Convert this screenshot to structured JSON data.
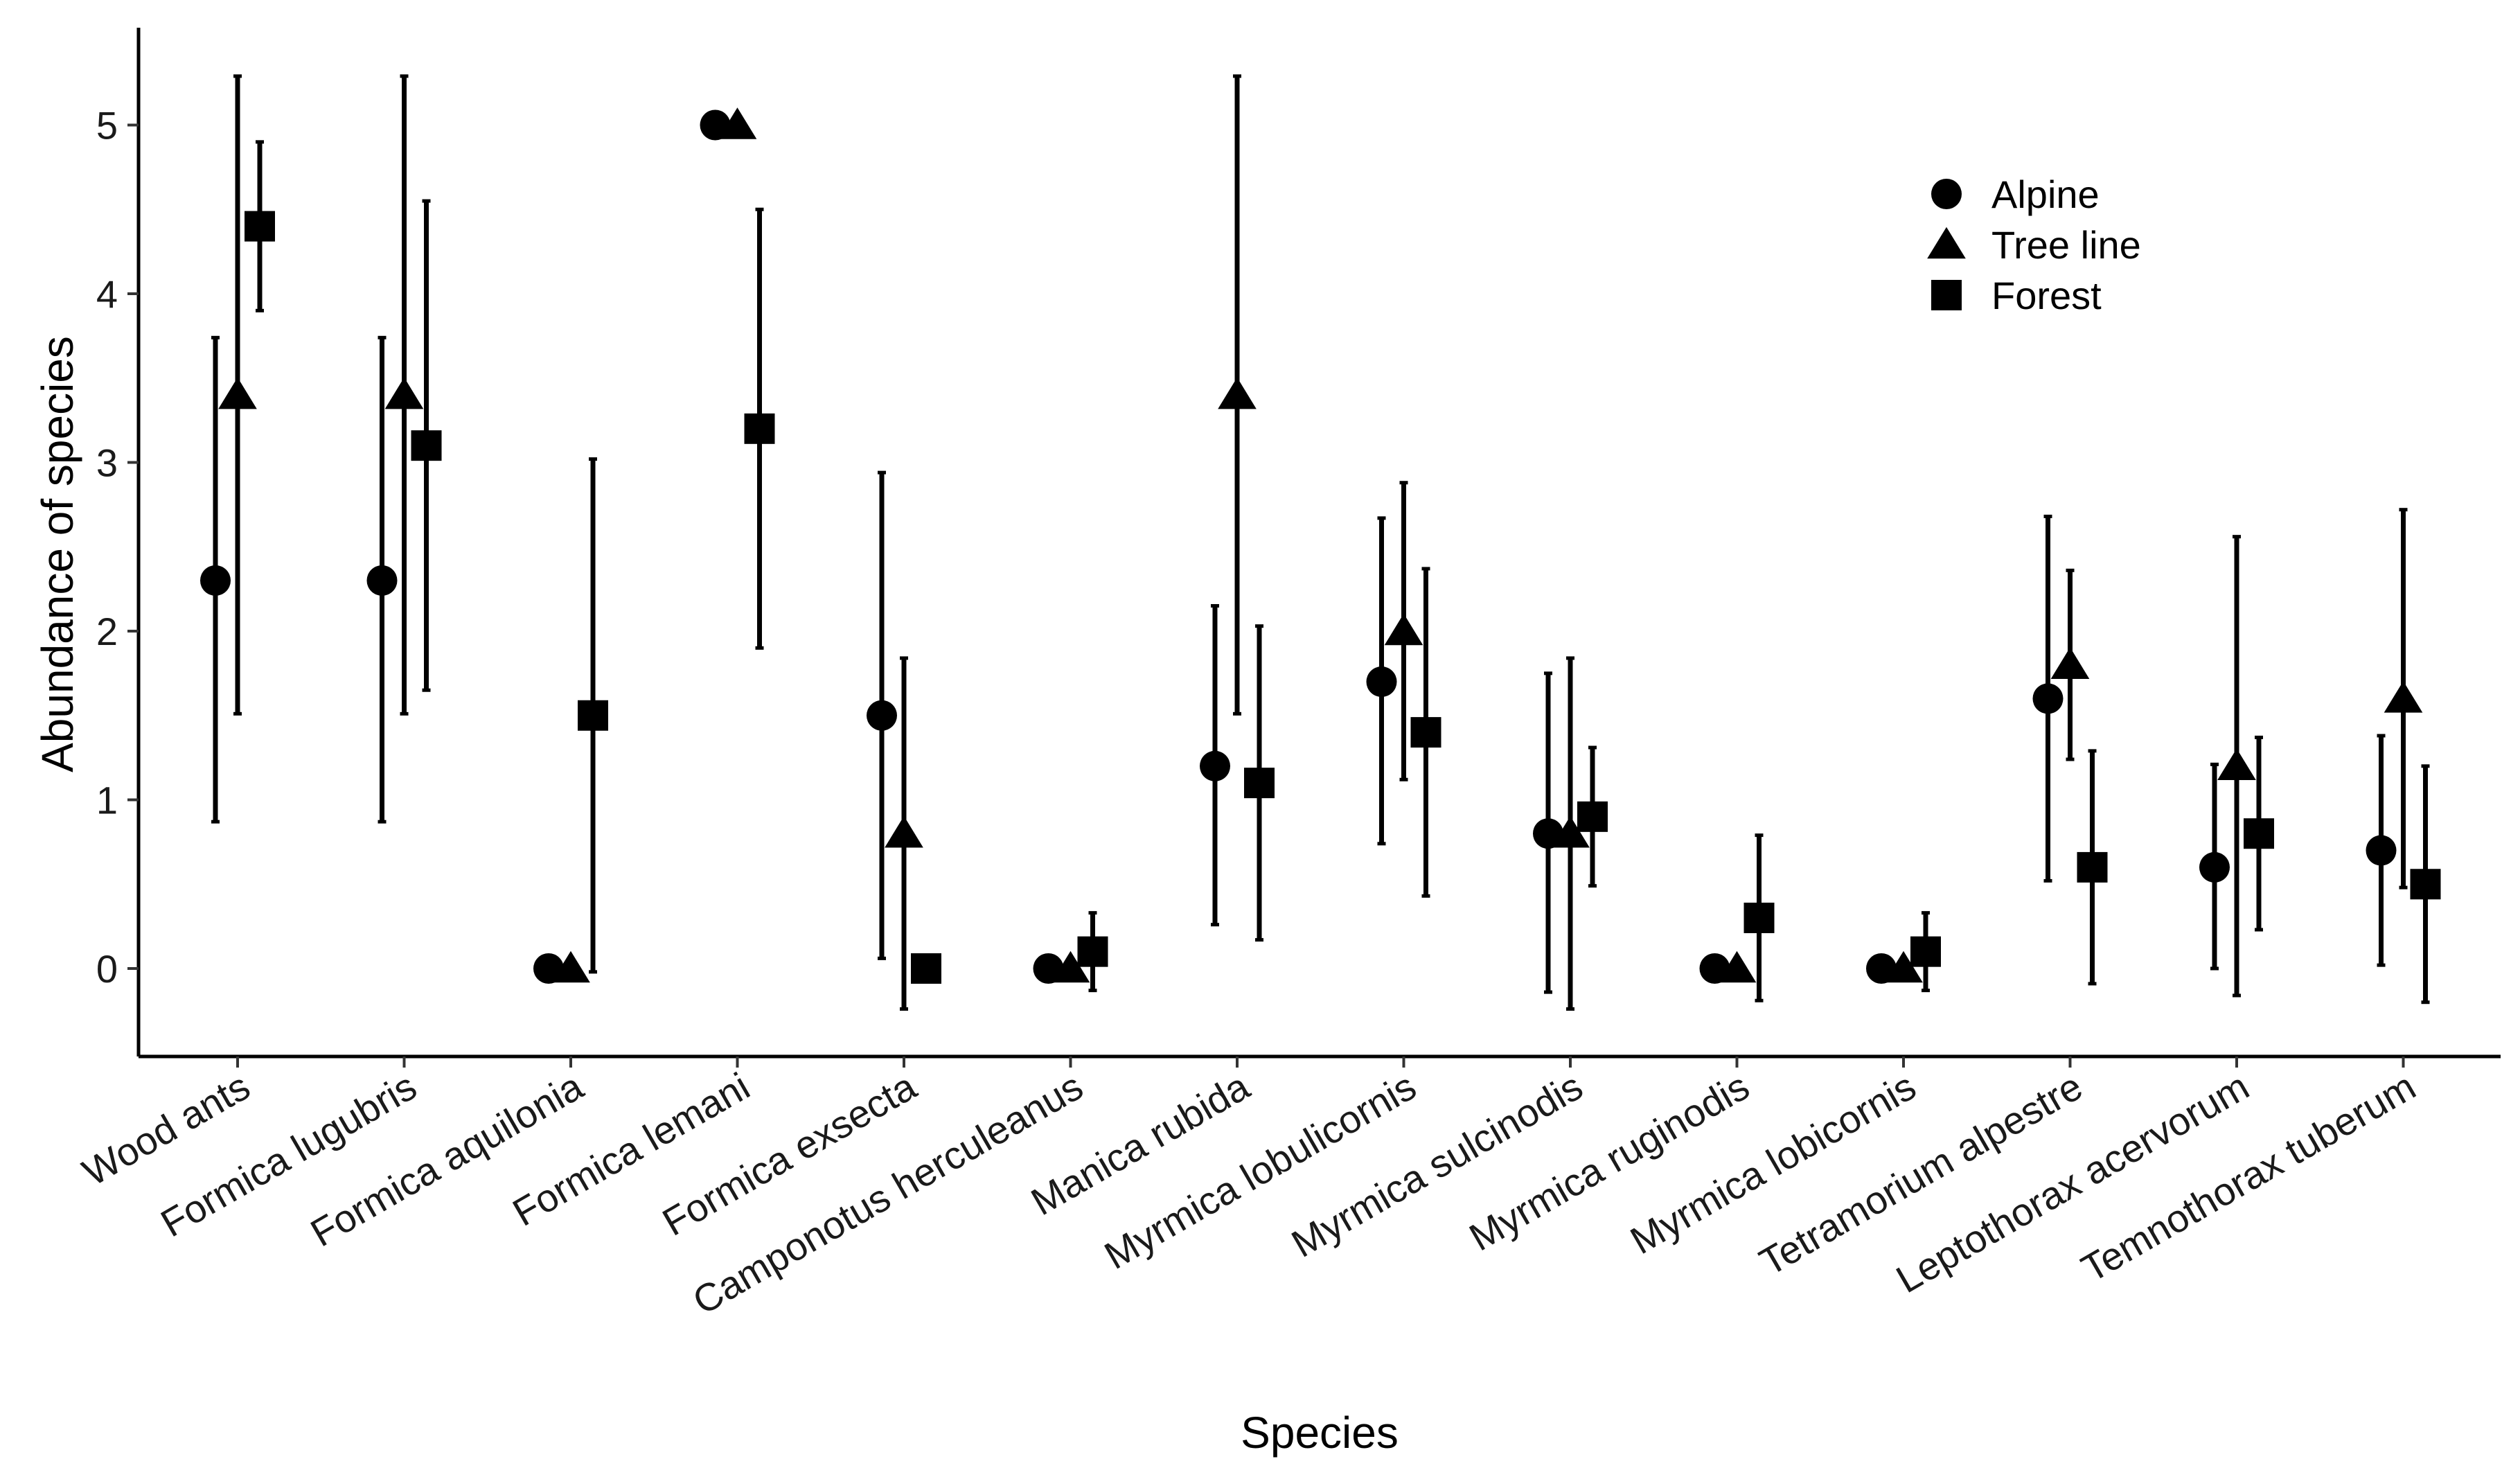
{
  "chart_data": {
    "type": "scatter",
    "title": "",
    "xlabel": "Species",
    "ylabel": "Abundance of species",
    "ylim": [
      -0.5,
      5.5
    ],
    "yticks": [
      0,
      1,
      2,
      3,
      4,
      5
    ],
    "grid": false,
    "legend_position": "top-right",
    "categories": [
      "Wood ants",
      "Formica lugubris",
      "Formica aquilonia",
      "Formica lemani",
      "Formica exsecta",
      "Camponotus herculeanus",
      "Manica rubida",
      "Myrmica lobulicornis",
      "Myrmica sulcinodis",
      "Myrmica ruginodis",
      "Myrmica lobicornis",
      "Tetramorium alpestre",
      "Leptothorax acervorum",
      "Temnothorax tuberum"
    ],
    "series": [
      {
        "name": "Alpine",
        "marker": "circle",
        "values": [
          2.3,
          2.3,
          0,
          5.0,
          1.5,
          0,
          1.2,
          1.7,
          0.8,
          0,
          0,
          1.6,
          0.6,
          0.7
        ],
        "lower": [
          0.87,
          0.87,
          null,
          null,
          0.06,
          null,
          0.26,
          0.74,
          -0.14,
          null,
          null,
          0.52,
          0.0,
          0.02
        ],
        "upper": [
          3.74,
          3.74,
          null,
          null,
          2.94,
          null,
          2.15,
          2.67,
          1.75,
          null,
          null,
          2.68,
          1.21,
          1.38
        ]
      },
      {
        "name": "Tree line",
        "marker": "triangle",
        "values": [
          3.4,
          3.4,
          0,
          5.0,
          0.8,
          0,
          3.4,
          2.0,
          0.8,
          0,
          0,
          1.8,
          1.2,
          1.6
        ],
        "lower": [
          1.51,
          1.51,
          null,
          null,
          -0.24,
          null,
          1.51,
          1.12,
          -0.24,
          null,
          null,
          1.24,
          -0.16,
          0.48
        ],
        "upper": [
          5.29,
          5.29,
          null,
          null,
          1.84,
          null,
          5.29,
          2.88,
          1.84,
          null,
          null,
          2.36,
          2.56,
          2.72
        ]
      },
      {
        "name": "Forest",
        "marker": "square",
        "values": [
          4.4,
          3.1,
          1.5,
          3.2,
          0,
          0.1,
          1.1,
          1.4,
          0.9,
          0.3,
          0.1,
          0.6,
          0.8,
          0.5
        ],
        "lower": [
          3.9,
          1.65,
          -0.02,
          1.9,
          null,
          -0.13,
          0.17,
          0.43,
          0.49,
          -0.19,
          -0.13,
          -0.09,
          0.23,
          -0.2
        ],
        "upper": [
          4.9,
          4.55,
          3.02,
          4.5,
          null,
          0.33,
          2.03,
          2.37,
          1.31,
          0.79,
          0.33,
          1.29,
          1.37,
          1.2
        ]
      }
    ]
  }
}
